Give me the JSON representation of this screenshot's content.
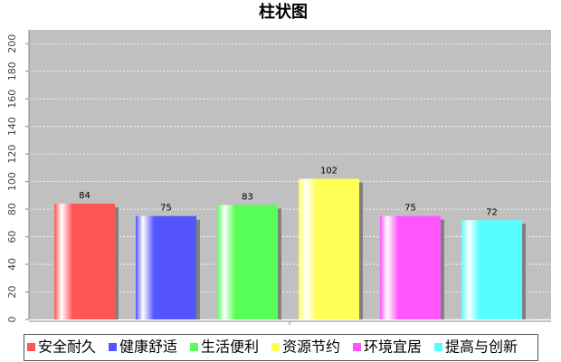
{
  "chart_data": {
    "type": "bar",
    "title": "柱状图",
    "categories": [
      "安全耐久",
      "健康舒适",
      "生活便利",
      "资源节约",
      "环境宜居",
      "提高与创新"
    ],
    "values": [
      84,
      75,
      83,
      102,
      75,
      72
    ],
    "colors": [
      "#ff5555",
      "#5555ff",
      "#55ff55",
      "#ffff55",
      "#ff55ff",
      "#55ffff"
    ],
    "ylim": [
      0,
      210
    ],
    "yticks": [
      0,
      20,
      40,
      60,
      80,
      100,
      120,
      140,
      160,
      180,
      200
    ],
    "grid": true,
    "legend": "bottom"
  }
}
